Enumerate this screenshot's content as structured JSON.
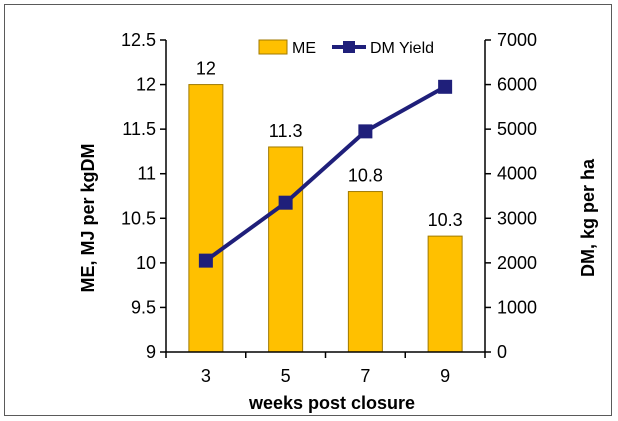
{
  "chart_data": {
    "type": "bar+line",
    "categories": [
      "3",
      "5",
      "7",
      "9"
    ],
    "xlabel": "weeks post closure",
    "ylabel_left": "ME, MJ per kgDM",
    "ylabel_right": "DM, kg per ha",
    "ylim_left": [
      9,
      12.5
    ],
    "ylim_right": [
      0,
      7000
    ],
    "yticks_left": [
      "9",
      "9.5",
      "10",
      "10.5",
      "11",
      "11.5",
      "12",
      "12.5"
    ],
    "yticks_right": [
      "0",
      "1000",
      "2000",
      "3000",
      "4000",
      "5000",
      "6000",
      "7000"
    ],
    "grid": false,
    "legend_position": "top-right",
    "series": [
      {
        "name": "ME",
        "type": "bar",
        "axis": "left",
        "color": "#FFC000",
        "values": [
          12,
          11.3,
          10.8,
          10.3
        ],
        "labels": [
          "12",
          "11.3",
          "10.8",
          "10.3"
        ]
      },
      {
        "name": "DM Yield",
        "type": "line",
        "axis": "right",
        "color": "#1F1F7A",
        "values": [
          2050,
          3350,
          4950,
          5950
        ]
      }
    ]
  }
}
